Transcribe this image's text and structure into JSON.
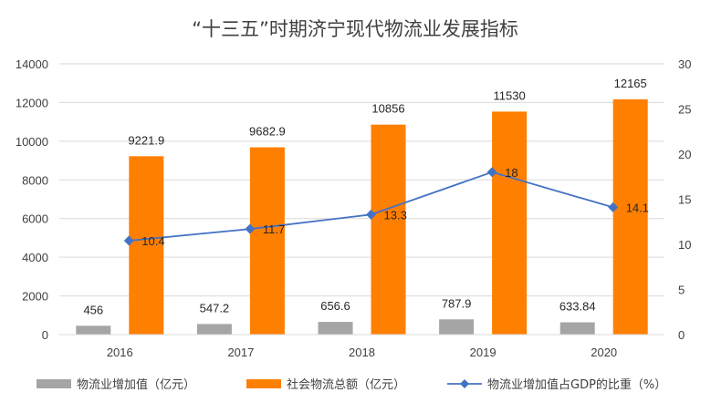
{
  "chart_data": {
    "type": "bar",
    "title": "“十三五”时期济宁现代物流业发展指标",
    "categories": [
      "2016",
      "2017",
      "2018",
      "2019",
      "2020"
    ],
    "series": [
      {
        "name": "物流业增加值（亿元）",
        "kind": "bar",
        "axis": "left",
        "color": "#a5a5a5",
        "values": [
          456,
          547.2,
          656.6,
          787.9,
          633.84
        ],
        "labels": [
          "456",
          "547.2",
          "656.6",
          "787.9",
          "633.84"
        ]
      },
      {
        "name": "社会物流总额（亿元）",
        "kind": "bar",
        "axis": "left",
        "color": "#ff7f00",
        "values": [
          9221.9,
          9682.9,
          10856,
          11530,
          12165
        ],
        "labels": [
          "9221.9",
          "9682.9",
          "10856",
          "11530",
          "12165"
        ]
      },
      {
        "name": "物流业增加值占GDP的比重（%）",
        "kind": "line",
        "axis": "right",
        "color": "#4472c4",
        "values": [
          10.4,
          11.7,
          13.3,
          18,
          14.1
        ],
        "labels": [
          "10.4",
          "11.7",
          "13.3",
          "18",
          "14.1"
        ]
      }
    ],
    "y_left": {
      "min": 0,
      "max": 14000,
      "ticks": [
        "0",
        "2000",
        "4000",
        "6000",
        "8000",
        "10000",
        "12000",
        "14000"
      ]
    },
    "y_right": {
      "min": 0,
      "max": 30,
      "ticks": [
        "0",
        "5",
        "10",
        "15",
        "20",
        "25",
        "30"
      ]
    },
    "grid": true,
    "legend_position": "bottom"
  }
}
